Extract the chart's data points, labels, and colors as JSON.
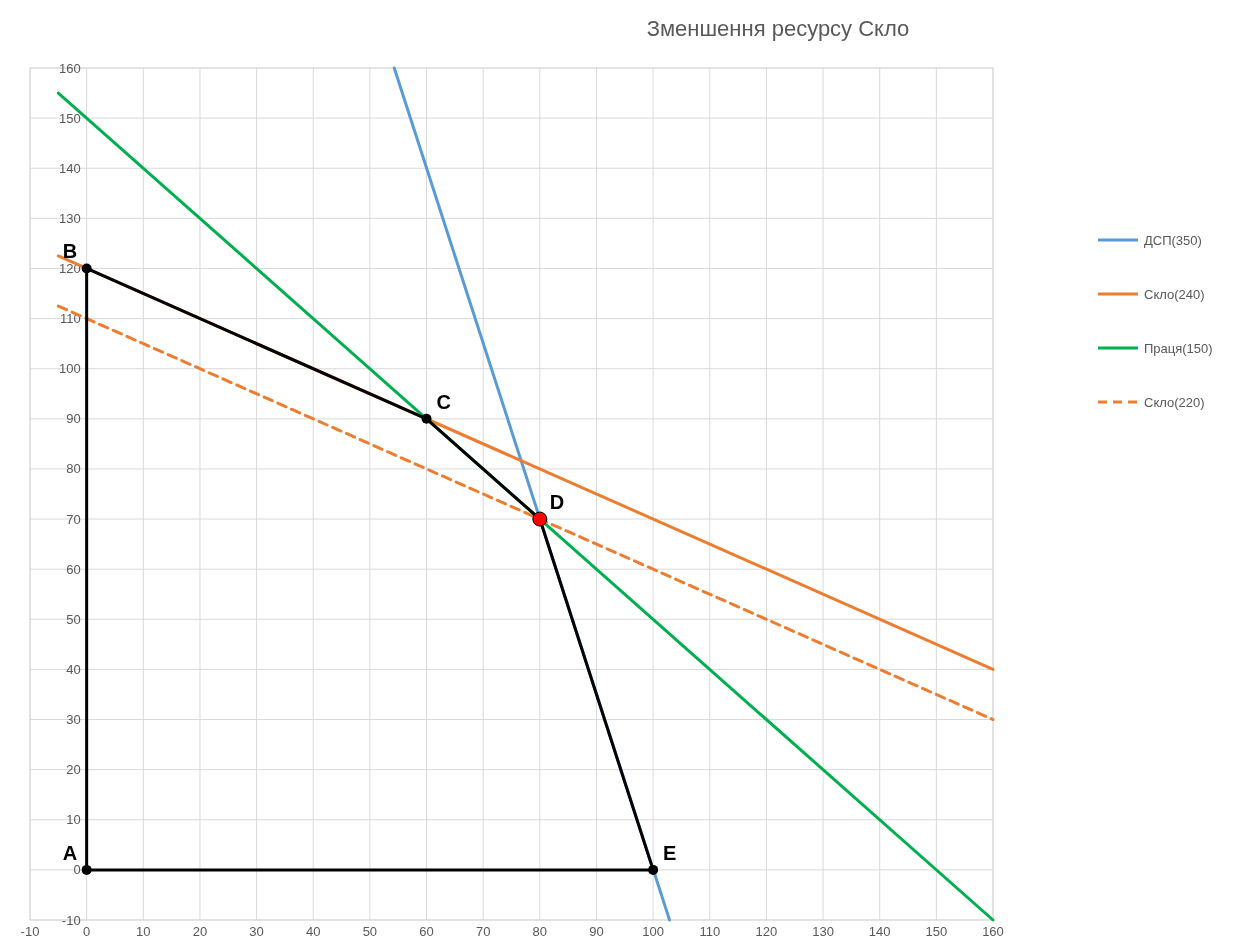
{
  "chart_data": {
    "type": "line",
    "title": "Зменшення ресурсу Скло",
    "xlim": [
      -10,
      160
    ],
    "xticks": [
      -10,
      0,
      10,
      20,
      30,
      40,
      50,
      60,
      70,
      80,
      90,
      100,
      110,
      120,
      130,
      140,
      150,
      160
    ],
    "ylim": [
      -10,
      160
    ],
    "yticks": [
      -10,
      0,
      10,
      20,
      30,
      40,
      50,
      60,
      70,
      80,
      90,
      100,
      110,
      120,
      130,
      140,
      150,
      160
    ],
    "grid": true,
    "legend": "right",
    "marker": "none",
    "series": [
      {
        "name": "ДСП(350)",
        "color": "#5b9bd5",
        "x": [
          54.3,
          102.9
        ],
        "values": [
          160,
          -10
        ]
      },
      {
        "name": "Скло(240)",
        "color": "#ed7d31",
        "x": [
          -5,
          160
        ],
        "values": [
          122.5,
          40
        ]
      },
      {
        "name": "Праця(150)",
        "color": "#00b050",
        "x": [
          -5,
          160
        ],
        "values": [
          155,
          -10
        ]
      },
      {
        "name": "Скло(220)",
        "color": "#ed7d31",
        "x": [
          -5,
          160
        ],
        "values": [
          112.5,
          30
        ],
        "line_style": "dashed"
      },
      {
        "color": "#000000",
        "x": [
          0,
          0,
          60,
          80,
          100
        ],
        "values": [
          0,
          120,
          90,
          70,
          0
        ],
        "marker": "circle"
      },
      {
        "color": "#000000",
        "x": [
          0,
          100
        ],
        "values": [
          0,
          0
        ]
      },
      {
        "type": "scatter",
        "color": "#ff0000",
        "x": [
          80
        ],
        "values": [
          70
        ],
        "marker": "circle"
      }
    ],
    "annotations": [
      {
        "text": "A",
        "x": 0,
        "y": 0
      },
      {
        "text": "B",
        "x": 0,
        "y": 120
      },
      {
        "text": "C",
        "x": 60,
        "y": 90
      },
      {
        "text": "D",
        "x": 80,
        "y": 70
      },
      {
        "text": "E",
        "x": 100,
        "y": 0
      }
    ]
  }
}
